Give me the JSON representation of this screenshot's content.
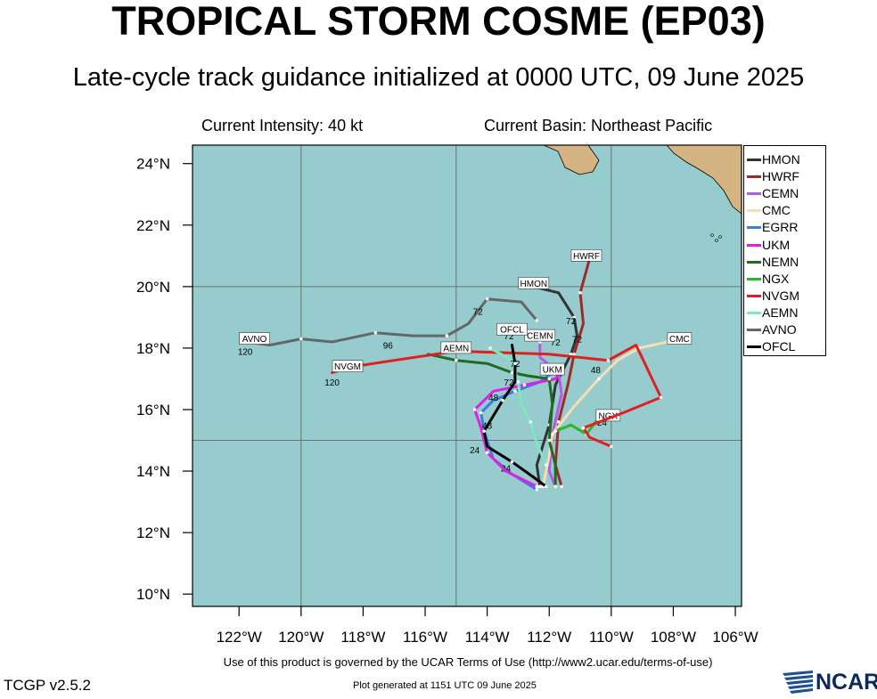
{
  "header": {
    "title": "TROPICAL STORM COSME (EP03)",
    "subtitle": "Late-cycle track guidance initialized at 0000 UTC, 09 June 2025",
    "intensity": "Current Intensity: 40 kt",
    "basin": "Current Basin: Northeast Pacific"
  },
  "footer": {
    "terms": "Use of this product is governed by the UCAR Terms of Use (http://www2.ucar.edu/terms-of-use)",
    "version": "TCGP v2.5.2",
    "plot_generated": "Plot generated at 1151 UTC   09 June 2025",
    "logo_text": "NCAR"
  },
  "colors": {
    "ocean": "#96cccd",
    "land": "#d4b483",
    "grid": "#707070"
  },
  "chart_data": {
    "type": "line",
    "map": "track map",
    "xlim": [
      -123.5,
      -105.8
    ],
    "ylim": [
      9.6,
      24.6
    ],
    "x_ticks": [
      -122,
      -120,
      -118,
      -116,
      -114,
      -112,
      -110,
      -108,
      -106
    ],
    "x_tick_labels": [
      "122°W",
      "120°W",
      "118°W",
      "116°W",
      "114°W",
      "112°W",
      "110°W",
      "108°W",
      "106°W"
    ],
    "y_ticks": [
      10,
      12,
      14,
      16,
      18,
      20,
      22,
      24
    ],
    "y_tick_labels": [
      "10°N",
      "12°N",
      "14°N",
      "16°N",
      "18°N",
      "20°N",
      "22°N",
      "24°N"
    ],
    "grid_lon": [
      -120,
      -115,
      -110
    ],
    "grid_lat": [
      15,
      20
    ],
    "legend_position": "right",
    "series": [
      {
        "name": "HMON",
        "color": "#333333",
        "points": [
          [
            -112.3,
            13.5
          ],
          [
            -112.4,
            14.2
          ],
          [
            -112.0,
            15.5
          ],
          [
            -111.8,
            16.8
          ],
          [
            -111.3,
            17.8
          ],
          [
            -111.1,
            18.4
          ],
          [
            -111.2,
            19.0
          ],
          [
            -111.7,
            19.8
          ],
          [
            -112.5,
            20.0
          ]
        ],
        "labels": [
          {
            "text": "72",
            "at": [
              -111.3,
              18.9
            ]
          }
        ],
        "box": {
          "text": "HMON",
          "at": [
            -112.5,
            20.1
          ]
        }
      },
      {
        "name": "HWRF",
        "color": "#a02a2a",
        "points": [
          [
            -111.6,
            13.5
          ],
          [
            -111.8,
            14.2
          ],
          [
            -111.7,
            15.6
          ],
          [
            -111.4,
            16.8
          ],
          [
            -111.2,
            17.8
          ],
          [
            -110.9,
            18.8
          ],
          [
            -111.0,
            19.8
          ],
          [
            -110.7,
            20.9
          ]
        ],
        "labels": [
          {
            "text": "72",
            "at": [
              -111.1,
              18.3
            ]
          }
        ],
        "box": {
          "text": "HWRF",
          "at": [
            -110.8,
            21.0
          ]
        }
      },
      {
        "name": "CEMN",
        "color": "#b25be6",
        "points": [
          [
            -111.8,
            13.5
          ],
          [
            -112.0,
            14.0
          ],
          [
            -111.9,
            15.2
          ],
          [
            -111.6,
            16.5
          ],
          [
            -111.7,
            17.2
          ],
          [
            -112.3,
            17.7
          ],
          [
            -112.3,
            18.2
          ]
        ],
        "labels": [
          {
            "text": "72",
            "at": [
              -111.8,
              18.2
            ]
          }
        ],
        "box": {
          "text": "CEMN",
          "at": [
            -112.3,
            18.4
          ]
        }
      },
      {
        "name": "CMC",
        "color": "#f5deb3",
        "points": [
          [
            -112.2,
            13.5
          ],
          [
            -112.0,
            14.5
          ],
          [
            -111.9,
            15.2
          ],
          [
            -111.2,
            16.1
          ],
          [
            -110.4,
            17.0
          ],
          [
            -109.8,
            17.6
          ],
          [
            -109.1,
            18.0
          ],
          [
            -108.2,
            18.2
          ],
          [
            -107.8,
            18.3
          ]
        ],
        "labels": [
          {
            "text": "48",
            "at": [
              -110.5,
              17.3
            ]
          }
        ],
        "box": {
          "text": "CMC",
          "at": [
            -107.8,
            18.3
          ]
        }
      },
      {
        "name": "EGRR",
        "color": "#3a7fe0",
        "points": [
          [
            -112.4,
            13.4
          ],
          [
            -113.2,
            13.9
          ],
          [
            -113.8,
            14.4
          ],
          [
            -114.1,
            15.3
          ],
          [
            -114.2,
            15.9
          ],
          [
            -113.8,
            16.3
          ],
          [
            -113.1,
            16.6
          ],
          [
            -112.3,
            16.9
          ],
          [
            -111.9,
            17.2
          ]
        ],
        "labels": [
          {
            "text": "24",
            "at": [
              -113.4,
              14.1
            ]
          }
        ],
        "box": null
      },
      {
        "name": "UKM",
        "color": "#e020e0",
        "points": [
          [
            -112.4,
            13.5
          ],
          [
            -113.4,
            14.0
          ],
          [
            -114.0,
            14.6
          ],
          [
            -114.2,
            15.4
          ],
          [
            -114.4,
            16.0
          ],
          [
            -113.8,
            16.6
          ],
          [
            -112.8,
            16.8
          ],
          [
            -111.8,
            17.0
          ],
          [
            -111.6,
            17.3
          ]
        ],
        "labels": [
          {
            "text": "48",
            "at": [
              -113.8,
              16.4
            ]
          }
        ],
        "box": {
          "text": "UKM",
          "at": [
            -111.9,
            17.3
          ]
        }
      },
      {
        "name": "NEMN",
        "color": "#1f6b1f",
        "points": [
          [
            -111.8,
            13.5
          ],
          [
            -111.8,
            14.2
          ],
          [
            -112.0,
            15.0
          ],
          [
            -111.9,
            16.2
          ],
          [
            -112.0,
            17.0
          ],
          [
            -112.7,
            17.1
          ],
          [
            -113.2,
            17.2
          ],
          [
            -114.0,
            17.5
          ],
          [
            -115.0,
            17.6
          ],
          [
            -115.9,
            17.8
          ]
        ],
        "labels": [
          {
            "text": "72",
            "at": [
              -113.3,
              16.9
            ]
          }
        ],
        "box": null
      },
      {
        "name": "NGX",
        "color": "#2db52d",
        "points": [
          [
            -111.8,
            15.3
          ],
          [
            -111.3,
            15.5
          ],
          [
            -110.8,
            15.2
          ],
          [
            -110.5,
            15.6
          ],
          [
            -110.2,
            15.8
          ]
        ],
        "labels": [
          {
            "text": "24",
            "at": [
              -110.3,
              15.6
            ]
          }
        ],
        "box": {
          "text": "NGX",
          "at": [
            -110.1,
            15.8
          ]
        }
      },
      {
        "name": "NVGM",
        "color": "#e02020",
        "points": [
          [
            -110.0,
            14.8
          ],
          [
            -110.7,
            15.1
          ],
          [
            -110.9,
            15.4
          ],
          [
            -109.6,
            15.9
          ],
          [
            -108.4,
            16.4
          ],
          [
            -109.2,
            18.1
          ],
          [
            -110.1,
            17.6
          ],
          [
            -112.0,
            17.8
          ],
          [
            -115.0,
            17.9
          ],
          [
            -117.0,
            17.6
          ],
          [
            -118.3,
            17.4
          ],
          [
            -119.0,
            17.2
          ]
        ],
        "labels": [
          {
            "text": "120",
            "at": [
              -119.0,
              16.9
            ]
          }
        ],
        "box": {
          "text": "NVGM",
          "at": [
            -118.5,
            17.4
          ]
        }
      },
      {
        "name": "AEMN",
        "color": "#7de8c0",
        "points": [
          [
            -112.1,
            14.2
          ],
          [
            -112.4,
            14.9
          ],
          [
            -112.6,
            15.6
          ],
          [
            -112.9,
            16.2
          ],
          [
            -113.0,
            16.9
          ],
          [
            -113.2,
            17.6
          ],
          [
            -113.9,
            18.0
          ]
        ],
        "labels": [
          {
            "text": "72",
            "at": [
              -113.1,
              17.5
            ]
          }
        ],
        "box": {
          "text": "AEMN",
          "at": [
            -115.0,
            18.0
          ]
        }
      },
      {
        "name": "AVNO",
        "color": "#666666",
        "points": [
          [
            -112.4,
            18.9
          ],
          [
            -112.9,
            19.5
          ],
          [
            -114.0,
            19.6
          ],
          [
            -114.6,
            18.8
          ],
          [
            -115.3,
            18.4
          ],
          [
            -116.4,
            18.4
          ],
          [
            -117.6,
            18.5
          ],
          [
            -119.0,
            18.2
          ],
          [
            -120.0,
            18.3
          ],
          [
            -121.0,
            18.1
          ],
          [
            -121.8,
            18.2
          ]
        ],
        "labels": [
          {
            "text": "72",
            "at": [
              -114.3,
              19.2
            ]
          },
          {
            "text": "96",
            "at": [
              -117.2,
              18.1
            ]
          },
          {
            "text": "120",
            "at": [
              -121.8,
              17.9
            ]
          }
        ],
        "box": {
          "text": "AVNO",
          "at": [
            -121.5,
            18.3
          ]
        }
      },
      {
        "name": "OFCL",
        "color": "#000000",
        "points": [
          [
            -112.1,
            13.5
          ],
          [
            -112.5,
            13.8
          ],
          [
            -113.2,
            14.3
          ],
          [
            -114.0,
            14.8
          ],
          [
            -114.1,
            15.3
          ],
          [
            -113.8,
            15.8
          ],
          [
            -113.5,
            16.3
          ],
          [
            -113.1,
            16.9
          ],
          [
            -113.1,
            17.5
          ],
          [
            -113.2,
            18.1
          ]
        ],
        "labels": [
          {
            "text": "24",
            "at": [
              -114.4,
              14.7
            ]
          },
          {
            "text": "48",
            "at": [
              -114.0,
              15.5
            ]
          },
          {
            "text": "72",
            "at": [
              -113.3,
              18.4
            ]
          }
        ],
        "box": {
          "text": "OFCL",
          "at": [
            -113.2,
            18.6
          ]
        }
      }
    ]
  }
}
